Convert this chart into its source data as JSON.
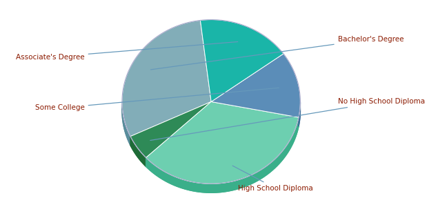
{
  "labels": [
    "Bachelor's Degree",
    "No High School Diploma",
    "High School Diploma",
    "Some College",
    "Associate's Degree"
  ],
  "values": [
    30,
    5,
    35,
    13,
    17
  ],
  "colors": [
    "#82adb8",
    "#2e8a57",
    "#6dcfb0",
    "#5b8db8",
    "#1ab5a8"
  ],
  "shadow_colors": [
    "#5a8d9c",
    "#1e6b37",
    "#3aaf8a",
    "#3b6d98",
    "#008a8a"
  ],
  "background_color": "#ffffff",
  "text_color": "#8B1A00",
  "label_line_color": "#6699bb",
  "startangle": 97,
  "title": ""
}
